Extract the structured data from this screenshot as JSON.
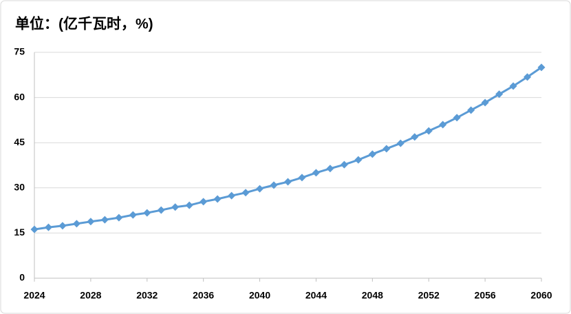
{
  "chart_data": {
    "type": "line",
    "title": "单位：(亿千瓦时，%)",
    "x": [
      2024,
      2025,
      2026,
      2027,
      2028,
      2029,
      2030,
      2031,
      2032,
      2033,
      2034,
      2035,
      2036,
      2037,
      2038,
      2039,
      2040,
      2041,
      2042,
      2043,
      2044,
      2045,
      2046,
      2047,
      2048,
      2049,
      2050,
      2051,
      2052,
      2053,
      2054,
      2055,
      2056,
      2057,
      2058,
      2059,
      2060
    ],
    "series": [
      {
        "color": "#5b9bd5",
        "values": [
          16.2,
          16.9,
          17.4,
          18.1,
          18.8,
          19.4,
          20.1,
          21.0,
          21.7,
          22.6,
          23.6,
          24.2,
          25.4,
          26.3,
          27.4,
          28.4,
          29.7,
          30.9,
          32.0,
          33.4,
          35.0,
          36.4,
          37.7,
          39.3,
          41.2,
          43.0,
          44.8,
          46.9,
          48.9,
          51.0,
          53.3,
          55.8,
          58.3,
          61.1,
          63.8,
          66.8,
          70.0
        ]
      }
    ],
    "xlim": [
      2024,
      2060
    ],
    "xticks": [
      2024,
      2028,
      2032,
      2036,
      2040,
      2044,
      2048,
      2052,
      2056,
      2060
    ],
    "ylim": [
      0,
      75
    ],
    "yticks": [
      0,
      15,
      30,
      45,
      60,
      75
    ],
    "grid": true
  }
}
